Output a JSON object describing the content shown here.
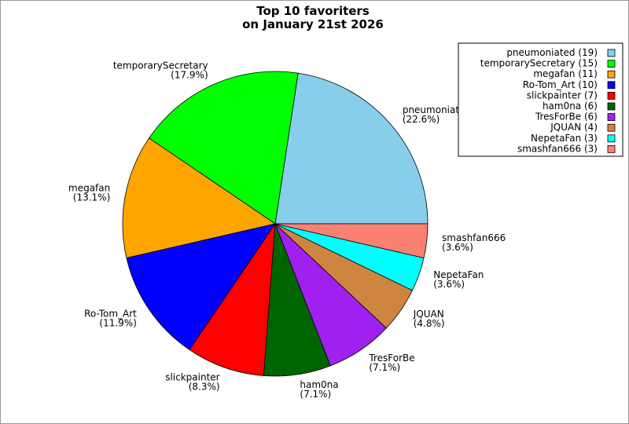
{
  "chart_data": {
    "type": "pie",
    "title": [
      "Top 10 favoriters",
      "on January 21st 2026"
    ],
    "categories": [
      "pneumoniated",
      "temporarySecretary",
      "megafan",
      "Ro-Tom_Art",
      "slickpainter",
      "ham0na",
      "TresForBe",
      "JQUAN",
      "NepetaFan",
      "smashfan666"
    ],
    "values": [
      22.6,
      17.9,
      13.1,
      11.9,
      8.3,
      7.1,
      7.1,
      4.8,
      3.6,
      3.6
    ],
    "value_labels": [
      "(22.6%)",
      "(17.9%)",
      "(13.1%)",
      "(11.9%)",
      "(8.3%)",
      "(7.1%)",
      "(7.1%)",
      "(4.8%)",
      "(3.6%)",
      "(3.6%)"
    ],
    "colors": [
      "#87ceeb",
      "#00ff00",
      "#ffa500",
      "#0000ff",
      "#ff0000",
      "#006400",
      "#a020f0",
      "#cd853f",
      "#00ffff",
      "#fa8072"
    ],
    "legend": {
      "loc": "upper right",
      "labels": [
        "pneumoniated (19)",
        "temporarySecretary (15)",
        "megafan (11)",
        "Ro-Tom_Art (10)",
        "slickpainter (7)",
        "ham0na (6)",
        "TresForBe (6)",
        "JQUAN (4)",
        "NepetaFan (3)",
        "smashfan666 (3)"
      ]
    }
  }
}
